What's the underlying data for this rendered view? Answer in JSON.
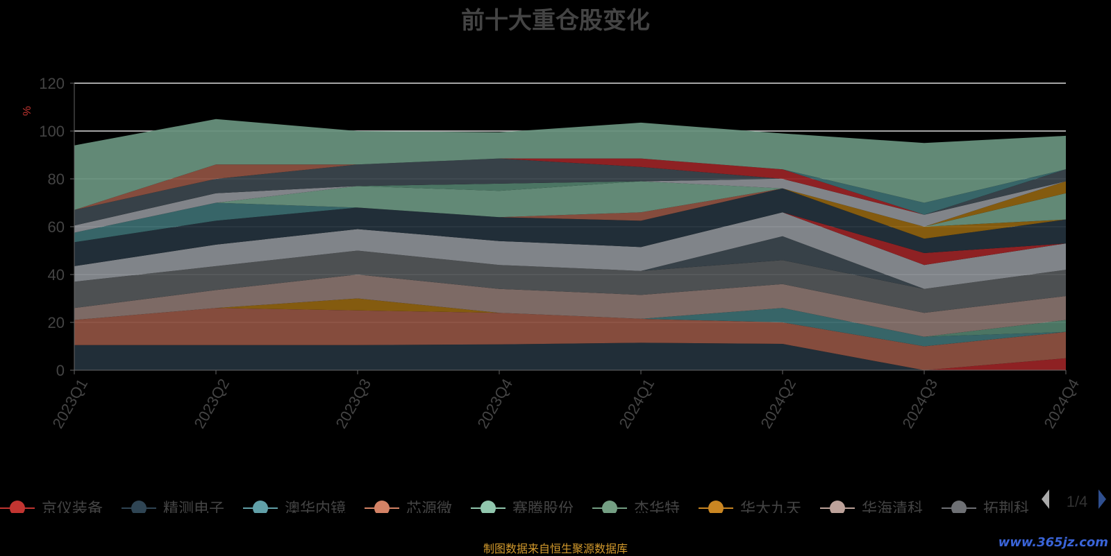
{
  "page": {
    "source_note": "制图数据来自恒生聚源数据库",
    "watermark": "www.365jz.com"
  },
  "legend": {
    "page_indicator": "1/4",
    "prev_icon": "triangle-left-icon",
    "next_icon": "triangle-right-icon"
  },
  "chart_data": {
    "type": "area",
    "stacked": true,
    "title": "前十大重仓股变化",
    "ylabel": "%",
    "xlabel": "",
    "ylim": [
      0,
      120
    ],
    "yticks": [
      0,
      20,
      40,
      60,
      80,
      100,
      120
    ],
    "grid": true,
    "legend_position": "bottom",
    "categories": [
      "2023Q1",
      "2023Q2",
      "2023Q3",
      "2023Q4",
      "2024Q1",
      "2024Q2",
      "2024Q3",
      "2024Q4"
    ],
    "series": [
      {
        "name": "",
        "color": "#23303b",
        "values": [
          10.5,
          10.5,
          10.5,
          10.8,
          11.5,
          11,
          0,
          0
        ]
      },
      {
        "name": "",
        "color": "#962325",
        "values": [
          0,
          0,
          0,
          0,
          0,
          0,
          0,
          5
        ]
      },
      {
        "name": "",
        "color": "#8c5040",
        "values": [
          10.5,
          15.5,
          14.5,
          13.2,
          10,
          9,
          10,
          11
        ]
      },
      {
        "name": "",
        "color": "#3a6a6e",
        "values": [
          0,
          0,
          0,
          0,
          0,
          6,
          4,
          0
        ]
      },
      {
        "name": "",
        "color": "#8b6010",
        "values": [
          0,
          0,
          5,
          0,
          0,
          0,
          0,
          0
        ]
      },
      {
        "name": "",
        "color": "#4f7b68",
        "values": [
          0,
          0,
          0,
          0,
          0,
          0,
          0,
          5
        ]
      },
      {
        "name": "",
        "color": "#84706a",
        "values": [
          5,
          7.5,
          10,
          10,
          10,
          10,
          10,
          10
        ]
      },
      {
        "name": "",
        "color": "#515456",
        "values": [
          11,
          10,
          10,
          10,
          10,
          10,
          10,
          11
        ]
      },
      {
        "name": "",
        "color": "#3a454c",
        "values": [
          0,
          0,
          0,
          0,
          0,
          10,
          0,
          0
        ]
      },
      {
        "name": "",
        "color": "#878b90",
        "values": [
          6.5,
          9,
          9,
          10,
          10,
          10,
          10,
          11
        ]
      },
      {
        "name": "",
        "color": "#962325",
        "values": [
          0,
          0,
          0,
          0,
          0,
          0,
          5,
          0
        ]
      },
      {
        "name": "",
        "color": "#23303b",
        "values": [
          10,
          10,
          9,
          10,
          11,
          10,
          6,
          10
        ]
      },
      {
        "name": "",
        "color": "#8c5040",
        "values": [
          0,
          0,
          0,
          0,
          3.5,
          0,
          0,
          0
        ]
      },
      {
        "name": "",
        "color": "#8b6010",
        "values": [
          0,
          0,
          0,
          0,
          0,
          0,
          5,
          0
        ]
      },
      {
        "name": "",
        "color": "#3a6a6e",
        "values": [
          4,
          7.5,
          0,
          0,
          0,
          0,
          0,
          0
        ]
      },
      {
        "name": "",
        "color": "#67907c",
        "values": [
          0,
          0,
          9,
          11,
          13,
          0,
          0,
          11
        ]
      },
      {
        "name": "",
        "color": "#8b6010",
        "values": [
          0,
          0,
          0,
          0,
          0,
          0,
          0,
          5
        ]
      },
      {
        "name": "",
        "color": "#4f7b68",
        "values": [
          0,
          0,
          0,
          3,
          0,
          0,
          0,
          0
        ]
      },
      {
        "name": "",
        "color": "#888b90",
        "values": [
          3,
          4,
          0,
          0,
          0,
          4,
          5,
          0
        ]
      },
      {
        "name": "",
        "color": "#3a454c",
        "values": [
          6.5,
          6,
          9,
          10.5,
          6,
          0,
          0,
          5
        ]
      },
      {
        "name": "",
        "color": "#962325",
        "values": [
          0,
          0,
          0,
          0,
          3.5,
          4,
          0,
          0
        ]
      },
      {
        "name": "",
        "color": "#3a6a6e",
        "values": [
          0,
          0,
          0,
          0,
          0,
          0,
          5,
          0
        ]
      },
      {
        "name": "",
        "color": "#8c5040",
        "values": [
          0,
          6,
          0,
          0,
          0,
          0,
          0,
          0
        ]
      },
      {
        "name": "",
        "color": "#67907c",
        "values": [
          27,
          19,
          14,
          11,
          15,
          15,
          25,
          14
        ]
      }
    ]
  },
  "chart_legend": [
    {
      "name": "京仪装备",
      "color": "#c23531"
    },
    {
      "name": "精测电子",
      "color": "#2f4554"
    },
    {
      "name": "澳华内镜",
      "color": "#61a0a8"
    },
    {
      "name": "芯源微",
      "color": "#d48265"
    },
    {
      "name": "赛腾股份",
      "color": "#91c7ae"
    },
    {
      "name": "杰华特",
      "color": "#749f83"
    },
    {
      "name": "华大九天",
      "color": "#ca8622"
    },
    {
      "name": "华海清科",
      "color": "#bda29a"
    },
    {
      "name": "拓荆科技",
      "color": "#6e7074"
    }
  ]
}
